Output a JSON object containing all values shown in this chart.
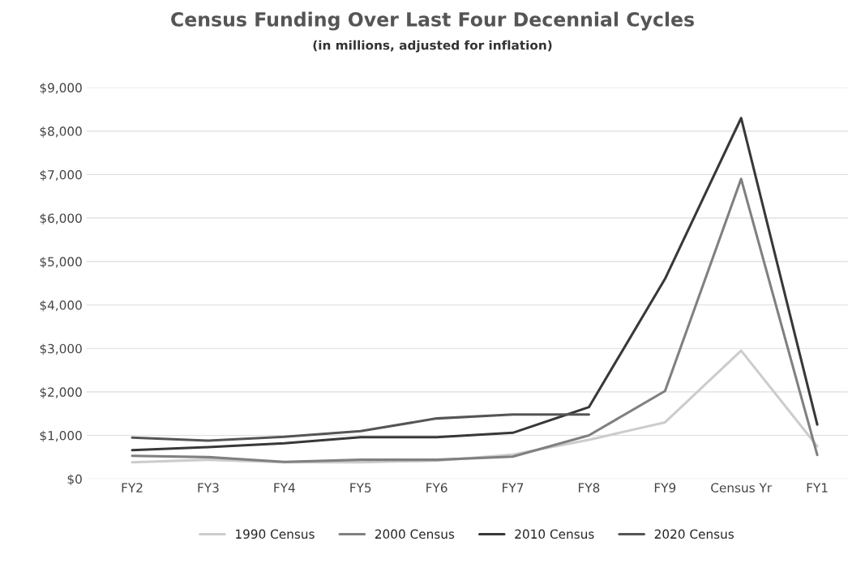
{
  "chart_data": {
    "type": "line",
    "title": "Census Funding Over Last Four Decennial Cycles",
    "subtitle": "(in millions, adjusted for inflation)",
    "categories": [
      "FY2",
      "FY3",
      "FY4",
      "FY5",
      "FY6",
      "FY7",
      "FY8",
      "FY9",
      "Census Yr",
      "FY1"
    ],
    "series": [
      {
        "name": "1990 Census",
        "color": "#cccccc",
        "values": [
          380,
          440,
          380,
          380,
          420,
          560,
          900,
          1300,
          2950,
          750
        ]
      },
      {
        "name": "2000 Census",
        "color": "#808080",
        "values": [
          530,
          500,
          390,
          440,
          440,
          510,
          1000,
          2020,
          6900,
          550
        ]
      },
      {
        "name": "2010 Census",
        "color": "#383838",
        "values": [
          660,
          730,
          820,
          960,
          960,
          1060,
          1650,
          4600,
          8300,
          1250
        ]
      },
      {
        "name": "2020 Census",
        "color": "#555555",
        "values": [
          950,
          880,
          970,
          1100,
          1390,
          1480,
          1480,
          null,
          null,
          null
        ]
      }
    ],
    "ylim": [
      0,
      9000
    ],
    "yticks": [
      {
        "value": 0,
        "label": "$0"
      },
      {
        "value": 1000,
        "label": "$1,000"
      },
      {
        "value": 2000,
        "label": "$2,000"
      },
      {
        "value": 3000,
        "label": "$3,000"
      },
      {
        "value": 4000,
        "label": "$4,000"
      },
      {
        "value": 5000,
        "label": "$5,000"
      },
      {
        "value": 6000,
        "label": "$6,000"
      },
      {
        "value": 7000,
        "label": "$7,000"
      },
      {
        "value": 8000,
        "label": "$8,000"
      },
      {
        "value": 9000,
        "label": "$9,000"
      }
    ],
    "grid": "y",
    "legend": "bottom",
    "marker": "none",
    "line_style": "solid"
  }
}
